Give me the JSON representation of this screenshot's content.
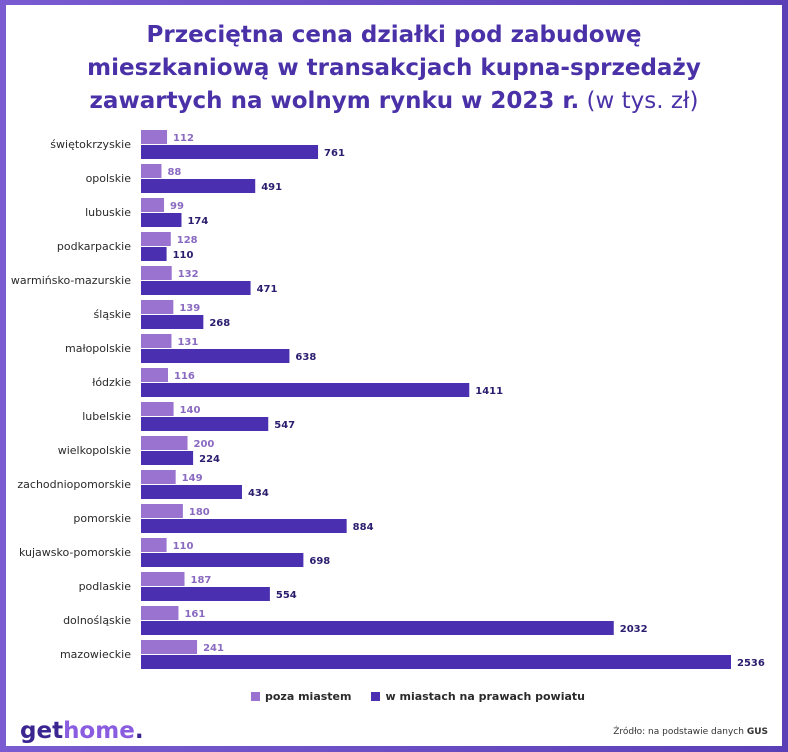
{
  "header": {
    "title_lines": [
      "Przeciętna cena działki pod zabudowę",
      "mieszkaniową w transakcjach kupna-sprzedaży",
      "zawartych na wolnym rynku w 2023 r."
    ],
    "unit": " (w tys. zł)"
  },
  "colors": {
    "outside": "#9a72cf",
    "city": "#4a2fb0",
    "brand": "#3b2590",
    "brand_accent": "#8a5ce0"
  },
  "chart_data": {
    "type": "bar",
    "orientation": "horizontal",
    "categories": [
      "świętokrzyskie",
      "opolskie",
      "lubuskie",
      "podkarpackie",
      "warmińsko-mazurskie",
      "śląskie",
      "małopolskie",
      "łódzkie",
      "lubelskie",
      "wielkopolskie",
      "zachodniopomorskie",
      "pomorskie",
      "kujawsko-pomorskie",
      "podlaskie",
      "dolnośląskie",
      "mazowieckie"
    ],
    "series": [
      {
        "name": "poza miastem",
        "values": [
          112,
          88,
          99,
          128,
          132,
          139,
          131,
          116,
          140,
          200,
          149,
          180,
          110,
          187,
          161,
          241
        ]
      },
      {
        "name": "w miastach na prawach powiatu",
        "values": [
          761,
          491,
          174,
          110,
          471,
          268,
          638,
          1411,
          547,
          224,
          434,
          884,
          698,
          554,
          2032,
          2536
        ]
      }
    ],
    "xlim": [
      0,
      2536
    ],
    "grid": false,
    "legend_position": "bottom"
  },
  "legend": {
    "item1": "poza miastem",
    "item2": "w miastach na prawach powiatu"
  },
  "footer": {
    "logo_part1": "get",
    "logo_part2": "home",
    "logo_dot": ".",
    "source_prefix": "Źródło: na podstawie danych ",
    "source_bold": "GUS"
  }
}
